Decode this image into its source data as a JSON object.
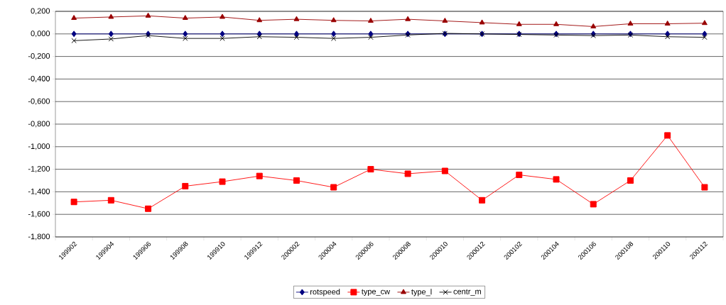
{
  "chart_data": {
    "type": "line",
    "categories": [
      "199902",
      "199904",
      "199906",
      "199908",
      "199910",
      "199912",
      "200002",
      "200004",
      "200006",
      "200008",
      "200010",
      "200012",
      "200102",
      "200104",
      "200106",
      "200108",
      "200110",
      "200112"
    ],
    "series": [
      {
        "name": "rotspeed",
        "color": "#000080",
        "marker": "diamond",
        "values": [
          0,
          0,
          0,
          0,
          0,
          0,
          0,
          0,
          0,
          0,
          0,
          0,
          0,
          0,
          0,
          0,
          0,
          0
        ]
      },
      {
        "name": "type_cw",
        "color": "#ff0000",
        "marker": "square",
        "values": [
          -1.49,
          -1.475,
          -1.55,
          -1.35,
          -1.31,
          -1.26,
          -1.3,
          -1.36,
          -1.2,
          -1.24,
          -1.215,
          -1.475,
          -1.25,
          -1.29,
          -1.51,
          -1.3,
          -0.9,
          -1.36
        ]
      },
      {
        "name": "type_l",
        "color": "#990000",
        "marker": "triangle",
        "values": [
          0.14,
          0.15,
          0.16,
          0.14,
          0.15,
          0.12,
          0.13,
          0.12,
          0.115,
          0.13,
          0.115,
          0.1,
          0.085,
          0.085,
          0.065,
          0.09,
          0.09,
          0.095
        ]
      },
      {
        "name": "centr_m",
        "color": "#000000",
        "marker": "cross",
        "values": [
          -0.06,
          -0.045,
          -0.015,
          -0.04,
          -0.04,
          -0.025,
          -0.03,
          -0.04,
          -0.03,
          -0.01,
          0.005,
          0,
          -0.005,
          -0.01,
          -0.015,
          -0.01,
          -0.025,
          -0.03
        ]
      }
    ],
    "ylim": [
      -1.8,
      0.2
    ],
    "yticks": [
      {
        "value": 0.2,
        "label": "0,200"
      },
      {
        "value": 0,
        "label": "0,000"
      },
      {
        "value": -0.2,
        "label": "-0,200"
      },
      {
        "value": -0.4,
        "label": "-0,400"
      },
      {
        "value": -0.6,
        "label": "-0,600"
      },
      {
        "value": -0.8,
        "label": "-0,800"
      },
      {
        "value": -1.0,
        "label": "-1,000"
      },
      {
        "value": -1.2,
        "label": "-1,200"
      },
      {
        "value": -1.4,
        "label": "-1,400"
      },
      {
        "value": -1.6,
        "label": "-1,600"
      },
      {
        "value": -1.8,
        "label": "-1,800"
      }
    ],
    "grid": "y",
    "legend": "bottom"
  }
}
